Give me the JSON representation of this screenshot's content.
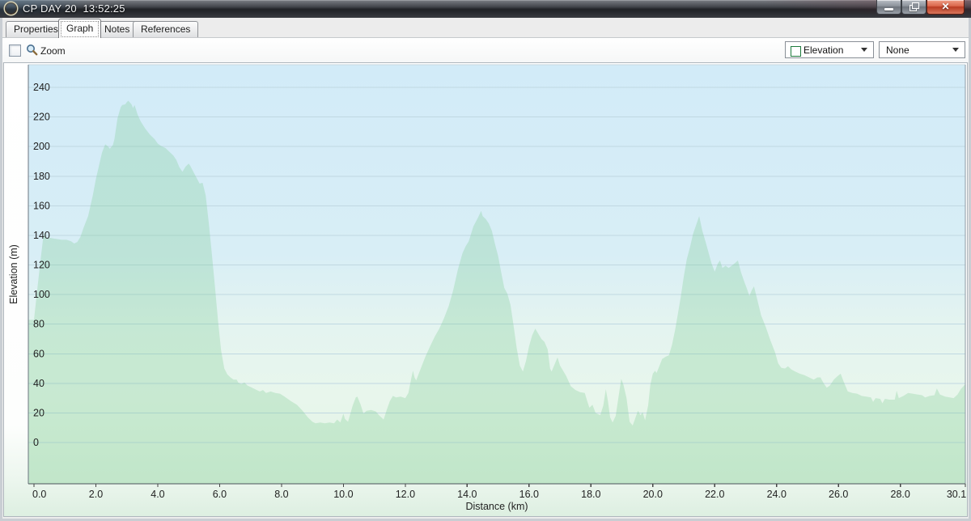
{
  "window": {
    "title": "CP DAY 20  13:52:25",
    "icon": "orange-dot-icon",
    "controls": [
      {
        "name": "minimize",
        "icon": "minimize-icon"
      },
      {
        "name": "restore",
        "icon": "restore-window-icon"
      },
      {
        "name": "close",
        "icon": "close-icon"
      }
    ]
  },
  "tabs": [
    {
      "label": "Properties",
      "active": false
    },
    {
      "label": "Graph",
      "active": true
    },
    {
      "label": "Notes",
      "active": false
    },
    {
      "label": "References",
      "active": false
    }
  ],
  "toolbar": {
    "zoom_label": "Zoom",
    "zoom_checked": false,
    "zoom_icon": "magnifier-icon",
    "series_dropdown": {
      "value": "Elevation",
      "swatch_color": "#28a24d",
      "icon": "chevron-down-icon"
    },
    "overlay_dropdown": {
      "value": "None",
      "icon": "chevron-down-icon"
    }
  },
  "chart_data": {
    "type": "area",
    "title": "",
    "xlabel": "Distance (km)",
    "ylabel": "Elevation (m)",
    "xlim": [
      0,
      30.1
    ],
    "ylim": [
      0,
      240
    ],
    "grid": "horizontal",
    "legend_position": "none",
    "yticks": [
      0,
      20,
      40,
      60,
      80,
      100,
      120,
      140,
      160,
      180,
      200,
      220,
      240
    ],
    "xticks": [
      {
        "v": 0,
        "label": "0.0"
      },
      {
        "v": 2,
        "label": "2.0"
      },
      {
        "v": 4,
        "label": "4.0"
      },
      {
        "v": 6,
        "label": "6.0"
      },
      {
        "v": 8,
        "label": "8.0"
      },
      {
        "v": 10,
        "label": "10.0"
      },
      {
        "v": 12,
        "label": "12.0"
      },
      {
        "v": 14,
        "label": "14.0"
      },
      {
        "v": 16,
        "label": "16.0"
      },
      {
        "v": 18,
        "label": "18.0"
      },
      {
        "v": 20,
        "label": "20.0"
      },
      {
        "v": 22,
        "label": "22.0"
      },
      {
        "v": 24,
        "label": "24.0"
      },
      {
        "v": 26,
        "label": "26.0"
      },
      {
        "v": 28,
        "label": "28.0"
      },
      {
        "v": 30.1,
        "label": "30.1"
      }
    ],
    "colors": {
      "line": "#2ca152",
      "fill": "rgba(120,200,140,0.28)",
      "grid": "#c0d8e2",
      "axis": "#4a525a",
      "plot_border": "#8d99a3",
      "tick_text": "#222222",
      "bg_stops": [
        [
          0,
          "#d2ebf8"
        ],
        [
          0.45,
          "#d8eef6"
        ],
        [
          0.62,
          "#e4f4f0"
        ],
        [
          0.8,
          "#e8f6ec"
        ],
        [
          1,
          "#def2e1"
        ]
      ]
    },
    "series": [
      {
        "name": "Elevation",
        "points": [
          [
            0,
            83
          ],
          [
            0.1,
            102
          ],
          [
            0.2,
            121
          ],
          [
            0.3,
            139
          ],
          [
            0.35,
            142
          ],
          [
            0.4,
            137.5
          ],
          [
            0.5,
            138.5
          ],
          [
            0.6,
            138
          ],
          [
            0.75,
            137.5
          ],
          [
            0.9,
            137
          ],
          [
            1.05,
            137
          ],
          [
            1.2,
            136
          ],
          [
            1.3,
            134.5
          ],
          [
            1.4,
            135.5
          ],
          [
            1.5,
            139
          ],
          [
            1.6,
            145
          ],
          [
            1.75,
            153
          ],
          [
            1.9,
            167
          ],
          [
            2.0,
            178
          ],
          [
            2.1,
            187
          ],
          [
            2.2,
            196
          ],
          [
            2.3,
            201.5
          ],
          [
            2.4,
            200
          ],
          [
            2.45,
            198.5
          ],
          [
            2.55,
            201
          ],
          [
            2.6,
            205
          ],
          [
            2.7,
            219
          ],
          [
            2.8,
            226.5
          ],
          [
            2.85,
            228
          ],
          [
            2.95,
            228.5
          ],
          [
            3.0,
            230
          ],
          [
            3.05,
            231
          ],
          [
            3.15,
            228.5
          ],
          [
            3.2,
            226
          ],
          [
            3.25,
            228
          ],
          [
            3.35,
            221.5
          ],
          [
            3.45,
            217
          ],
          [
            3.6,
            212
          ],
          [
            3.75,
            208
          ],
          [
            3.9,
            205
          ],
          [
            4.0,
            202
          ],
          [
            4.1,
            200.5
          ],
          [
            4.25,
            199
          ],
          [
            4.4,
            196
          ],
          [
            4.5,
            194
          ],
          [
            4.6,
            191
          ],
          [
            4.7,
            186
          ],
          [
            4.8,
            183
          ],
          [
            4.9,
            186.5
          ],
          [
            5.0,
            188.5
          ],
          [
            5.05,
            187
          ],
          [
            5.15,
            183
          ],
          [
            5.25,
            179
          ],
          [
            5.35,
            175
          ],
          [
            5.45,
            175.5
          ],
          [
            5.55,
            167
          ],
          [
            5.65,
            148
          ],
          [
            5.75,
            127
          ],
          [
            5.85,
            105
          ],
          [
            5.95,
            82
          ],
          [
            6.05,
            62
          ],
          [
            6.15,
            50
          ],
          [
            6.25,
            46
          ],
          [
            6.35,
            44
          ],
          [
            6.45,
            42.5
          ],
          [
            6.55,
            42.5
          ],
          [
            6.6,
            40.5
          ],
          [
            6.7,
            39.5
          ],
          [
            6.8,
            40.5
          ],
          [
            6.9,
            38.5
          ],
          [
            7.0,
            37.5
          ],
          [
            7.1,
            36.5
          ],
          [
            7.2,
            35.5
          ],
          [
            7.3,
            34.5
          ],
          [
            7.4,
            35.5
          ],
          [
            7.5,
            33.5
          ],
          [
            7.65,
            34.5
          ],
          [
            7.8,
            33.5
          ],
          [
            7.95,
            33
          ],
          [
            8.1,
            31
          ],
          [
            8.3,
            28
          ],
          [
            8.5,
            25.5
          ],
          [
            8.7,
            21
          ],
          [
            8.85,
            17
          ],
          [
            9.0,
            14
          ],
          [
            9.1,
            13
          ],
          [
            9.25,
            13.5
          ],
          [
            9.4,
            13
          ],
          [
            9.55,
            13.5
          ],
          [
            9.7,
            13
          ],
          [
            9.8,
            15.5
          ],
          [
            9.9,
            13.5
          ],
          [
            10.0,
            19.5
          ],
          [
            10.05,
            16
          ],
          [
            10.15,
            14
          ],
          [
            10.3,
            25
          ],
          [
            10.4,
            30.5
          ],
          [
            10.45,
            31
          ],
          [
            10.55,
            26
          ],
          [
            10.65,
            19.5
          ],
          [
            10.75,
            21.5
          ],
          [
            10.9,
            22
          ],
          [
            11.05,
            21
          ],
          [
            11.15,
            18.5
          ],
          [
            11.3,
            15.5
          ],
          [
            11.4,
            22
          ],
          [
            11.5,
            28
          ],
          [
            11.6,
            31.5
          ],
          [
            11.7,
            30.5
          ],
          [
            11.85,
            31
          ],
          [
            12.0,
            30
          ],
          [
            12.1,
            33.5
          ],
          [
            12.2,
            44
          ],
          [
            12.25,
            48.5
          ],
          [
            12.3,
            44
          ],
          [
            12.35,
            42
          ],
          [
            12.5,
            50
          ],
          [
            12.65,
            58
          ],
          [
            12.8,
            65
          ],
          [
            12.95,
            71.5
          ],
          [
            13.1,
            77
          ],
          [
            13.25,
            84
          ],
          [
            13.4,
            92
          ],
          [
            13.55,
            103
          ],
          [
            13.7,
            117
          ],
          [
            13.85,
            128
          ],
          [
            13.95,
            132.5
          ],
          [
            14.05,
            136
          ],
          [
            14.2,
            146
          ],
          [
            14.35,
            152
          ],
          [
            14.45,
            156.5
          ],
          [
            14.5,
            153
          ],
          [
            14.6,
            151
          ],
          [
            14.7,
            148
          ],
          [
            14.8,
            143
          ],
          [
            14.9,
            134
          ],
          [
            15.0,
            126
          ],
          [
            15.1,
            115
          ],
          [
            15.2,
            104.5
          ],
          [
            15.3,
            100.5
          ],
          [
            15.4,
            93
          ],
          [
            15.5,
            79
          ],
          [
            15.6,
            64
          ],
          [
            15.7,
            52
          ],
          [
            15.8,
            48
          ],
          [
            15.9,
            55
          ],
          [
            16.0,
            65
          ],
          [
            16.1,
            72.5
          ],
          [
            16.2,
            77
          ],
          [
            16.3,
            73.5
          ],
          [
            16.4,
            70
          ],
          [
            16.5,
            68
          ],
          [
            16.6,
            63
          ],
          [
            16.68,
            50
          ],
          [
            16.73,
            48
          ],
          [
            16.85,
            54
          ],
          [
            16.92,
            57.5
          ],
          [
            17.0,
            52
          ],
          [
            17.1,
            48.5
          ],
          [
            17.2,
            45
          ],
          [
            17.35,
            38
          ],
          [
            17.5,
            35.5
          ],
          [
            17.65,
            34
          ],
          [
            17.8,
            33.5
          ],
          [
            17.88,
            28
          ],
          [
            17.95,
            23.5
          ],
          [
            18.05,
            25.5
          ],
          [
            18.15,
            20
          ],
          [
            18.3,
            18.5
          ],
          [
            18.4,
            25
          ],
          [
            18.48,
            36
          ],
          [
            18.55,
            28
          ],
          [
            18.62,
            17
          ],
          [
            18.7,
            13.5
          ],
          [
            18.8,
            18
          ],
          [
            18.9,
            32
          ],
          [
            18.98,
            43
          ],
          [
            19.05,
            39
          ],
          [
            19.15,
            30
          ],
          [
            19.25,
            14
          ],
          [
            19.35,
            11.5
          ],
          [
            19.45,
            17.5
          ],
          [
            19.52,
            21.5
          ],
          [
            19.6,
            18.5
          ],
          [
            19.67,
            20.5
          ],
          [
            19.75,
            15
          ],
          [
            19.85,
            25
          ],
          [
            19.92,
            39
          ],
          [
            20.0,
            46.5
          ],
          [
            20.07,
            48.5
          ],
          [
            20.12,
            47
          ],
          [
            20.2,
            51
          ],
          [
            20.3,
            56.5
          ],
          [
            20.42,
            58
          ],
          [
            20.52,
            59
          ],
          [
            20.62,
            66
          ],
          [
            20.72,
            76
          ],
          [
            20.82,
            88
          ],
          [
            20.9,
            98
          ],
          [
            21.0,
            112
          ],
          [
            21.1,
            124
          ],
          [
            21.2,
            132
          ],
          [
            21.3,
            141
          ],
          [
            21.4,
            147
          ],
          [
            21.5,
            153
          ],
          [
            21.6,
            143
          ],
          [
            21.7,
            136
          ],
          [
            21.8,
            128.5
          ],
          [
            21.9,
            121
          ],
          [
            22.0,
            115.5
          ],
          [
            22.1,
            121
          ],
          [
            22.17,
            123
          ],
          [
            22.25,
            118
          ],
          [
            22.35,
            119.5
          ],
          [
            22.45,
            118
          ],
          [
            22.55,
            119.5
          ],
          [
            22.67,
            121.5
          ],
          [
            22.75,
            123
          ],
          [
            22.85,
            115
          ],
          [
            22.95,
            109
          ],
          [
            23.05,
            103.5
          ],
          [
            23.12,
            99
          ],
          [
            23.2,
            103
          ],
          [
            23.27,
            105.5
          ],
          [
            23.37,
            97
          ],
          [
            23.5,
            86
          ],
          [
            23.65,
            78
          ],
          [
            23.8,
            69
          ],
          [
            23.95,
            61
          ],
          [
            24.05,
            53.5
          ],
          [
            24.15,
            50.5
          ],
          [
            24.27,
            50
          ],
          [
            24.37,
            51.5
          ],
          [
            24.47,
            49.5
          ],
          [
            24.6,
            48
          ],
          [
            24.75,
            46.5
          ],
          [
            24.9,
            45.5
          ],
          [
            25.05,
            44
          ],
          [
            25.2,
            42.5
          ],
          [
            25.32,
            44
          ],
          [
            25.42,
            44
          ],
          [
            25.52,
            40
          ],
          [
            25.62,
            37
          ],
          [
            25.72,
            38.5
          ],
          [
            25.85,
            42.5
          ],
          [
            25.95,
            44.5
          ],
          [
            26.07,
            46.5
          ],
          [
            26.17,
            41
          ],
          [
            26.3,
            34.5
          ],
          [
            26.45,
            33.5
          ],
          [
            26.6,
            33
          ],
          [
            26.75,
            31.5
          ],
          [
            26.9,
            31
          ],
          [
            27.05,
            30.5
          ],
          [
            27.12,
            27.5
          ],
          [
            27.2,
            30
          ],
          [
            27.35,
            29.5
          ],
          [
            27.42,
            26.5
          ],
          [
            27.5,
            29.5
          ],
          [
            27.65,
            29
          ],
          [
            27.82,
            29
          ],
          [
            27.88,
            35
          ],
          [
            27.95,
            30
          ],
          [
            28.1,
            31.5
          ],
          [
            28.25,
            33.5
          ],
          [
            28.4,
            33
          ],
          [
            28.55,
            32.5
          ],
          [
            28.7,
            32
          ],
          [
            28.8,
            30.5
          ],
          [
            28.95,
            31.5
          ],
          [
            29.1,
            32
          ],
          [
            29.18,
            36.5
          ],
          [
            29.28,
            32.5
          ],
          [
            29.45,
            31
          ],
          [
            29.6,
            30.5
          ],
          [
            29.72,
            30
          ],
          [
            29.85,
            32.5
          ],
          [
            29.95,
            36
          ],
          [
            30.1,
            39.5
          ]
        ]
      }
    ]
  }
}
